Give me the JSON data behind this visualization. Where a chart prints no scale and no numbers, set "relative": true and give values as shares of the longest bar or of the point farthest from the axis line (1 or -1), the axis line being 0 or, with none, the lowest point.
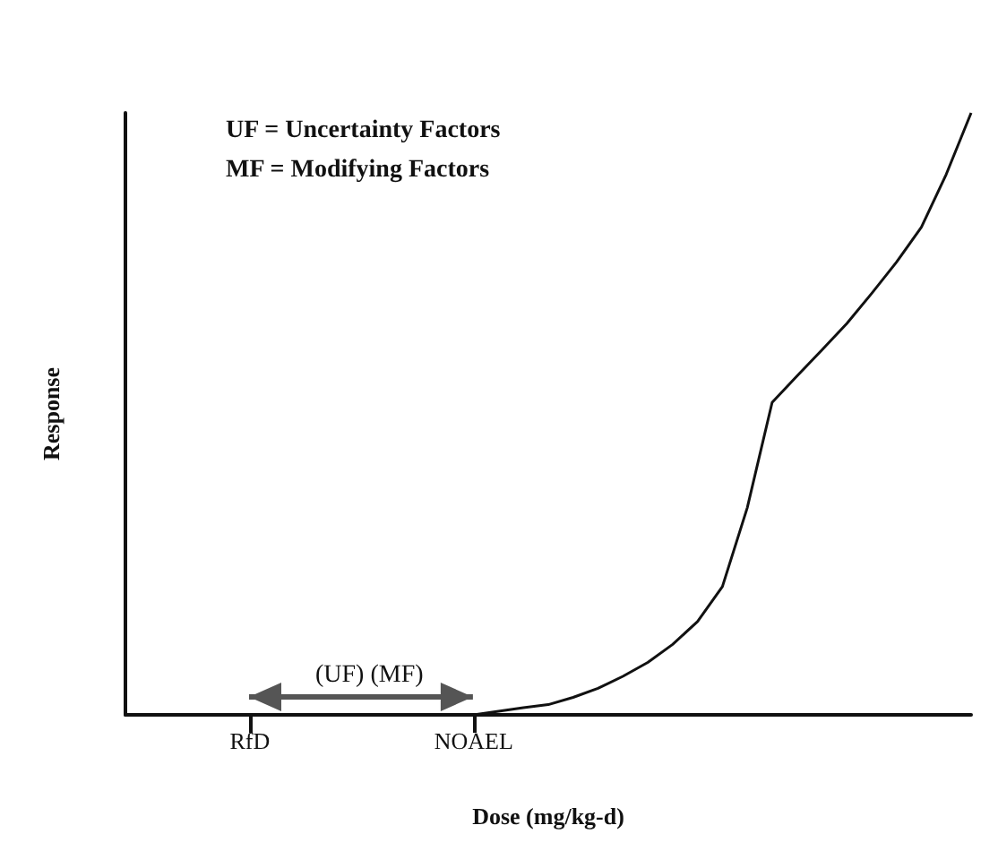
{
  "chart_data": {
    "type": "line",
    "xlabel": "Dose (mg/kg-d)",
    "ylabel": "Response",
    "relative": true,
    "marker": "none",
    "line_style": "solid",
    "grid": false,
    "annotations": [
      "UF = Uncertainty Factors",
      "MF = Modifying Factors",
      "(UF) (MF)"
    ],
    "categories": [
      null,
      null,
      null,
      null,
      null,
      "RfD",
      null,
      null,
      null,
      null,
      null,
      null,
      null,
      null,
      "NOAEL",
      null,
      null,
      null,
      null,
      null,
      null,
      null,
      null,
      null,
      null,
      null,
      null,
      null,
      null,
      null,
      null,
      null,
      null,
      null,
      null
    ],
    "series": [
      {
        "color": "#111111",
        "values": [
          null,
          null,
          null,
          null,
          null,
          null,
          null,
          null,
          null,
          null,
          null,
          null,
          null,
          null,
          0,
          0.006,
          0.012,
          0.017,
          0.029,
          0.044,
          0.064,
          0.087,
          0.117,
          0.155,
          0.213,
          0.344,
          0.519,
          0.563,
          0.606,
          0.65,
          0.7,
          0.752,
          0.81,
          0.898,
          1
        ]
      }
    ]
  }
}
